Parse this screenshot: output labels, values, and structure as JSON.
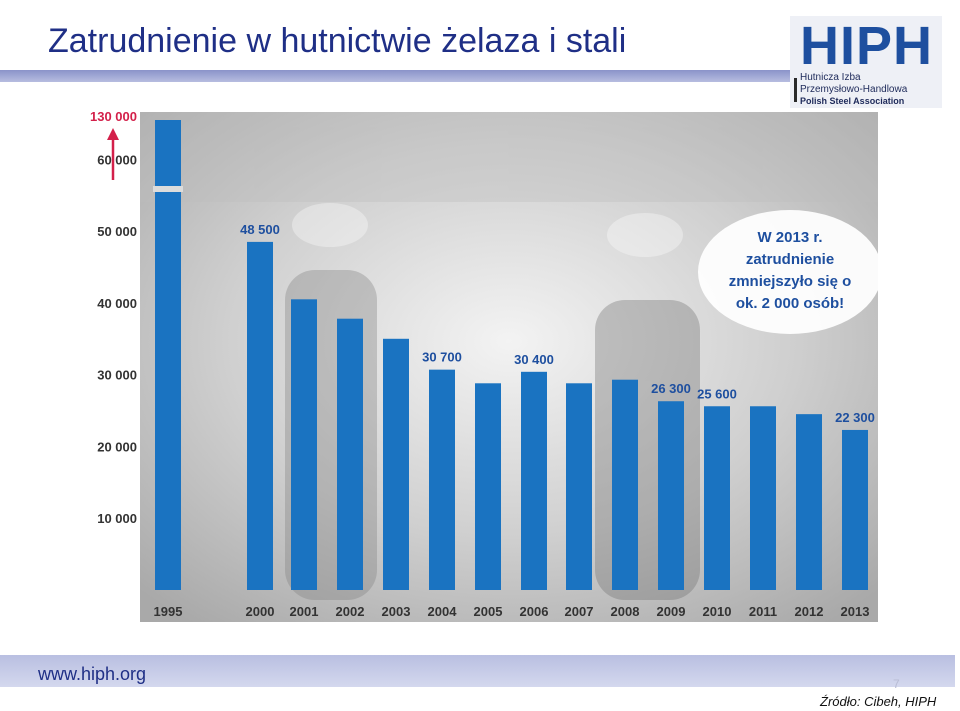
{
  "header": {
    "title": "Zatrudnienie w hutnictwie żelaza i stali"
  },
  "logo": {
    "mark": "HIPH",
    "line1": "Hutnicza Izba",
    "line2": "Przemysłowo-Handlowa",
    "line3": "Polish Steel Association"
  },
  "footer": {
    "url": "www.hiph.org",
    "page_number": "7",
    "source": "Źródło: Cibeh, HIPH"
  },
  "colors": {
    "bar": "#1a73c1",
    "label": "#1e4f9f",
    "axis_label": "#333333",
    "break_arrow": "#d3204a"
  },
  "chart_data": {
    "type": "bar",
    "title": "",
    "xlabel": "",
    "ylabel": "",
    "categories": [
      "1995",
      "2000",
      "2001",
      "2002",
      "2003",
      "2004",
      "2005",
      "2006",
      "2007",
      "2008",
      "2009",
      "2010",
      "2011",
      "2012",
      "2013"
    ],
    "values": [
      130000,
      48500,
      40500,
      37800,
      35000,
      30700,
      28800,
      30400,
      28800,
      29300,
      26300,
      25600,
      25600,
      24500,
      22300
    ],
    "data_labels": {
      "1": "48 500",
      "5": "30 700",
      "7": "30 400",
      "10": "26 300",
      "11": "25 600",
      "14": "22 300"
    },
    "y_ticks": [
      "10 000",
      "20 000",
      "30 000",
      "40 000",
      "50 000",
      "60 000"
    ],
    "y_tick_values": [
      10000,
      20000,
      30000,
      40000,
      50000,
      60000
    ],
    "y_break_label": "130 000",
    "ylim": [
      0,
      65000
    ],
    "axis_break": true,
    "grid": false,
    "callout": {
      "line1": "W 2013 r.",
      "line2": "zatrudnienie",
      "line3": "zmniejszyło się o",
      "line4": "ok. 2 000 osób!"
    }
  }
}
